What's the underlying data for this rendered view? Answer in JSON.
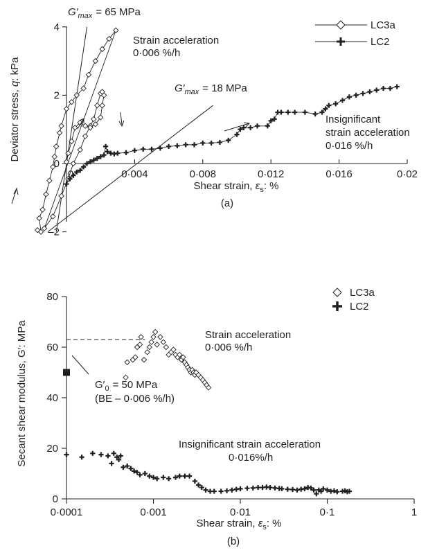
{
  "chart_data": [
    {
      "panel_label": "(a)",
      "type": "line",
      "xlabel_text": "Shear strain, ",
      "xlabel_symbol": "ε",
      "xlabel_sub": "s",
      "xlabel_unit": ": %",
      "ylabel_text": "Deviator stress, ",
      "ylabel_symbol": "q",
      "ylabel_unit": ": kPa",
      "xlim": [
        0,
        0.02
      ],
      "ylim": [
        -2.2,
        4
      ],
      "xticks": [
        0,
        0.004,
        0.008,
        0.012,
        0.016,
        0.02
      ],
      "xtick_labels": [
        "0",
        "0·004",
        "0·008",
        "0·012",
        "0·016",
        "0·02"
      ],
      "yticks": [
        -2,
        0,
        2,
        4
      ],
      "ytick_labels": [
        "–2",
        "0",
        "2",
        "4"
      ],
      "legend_position": "top-right",
      "series": [
        {
          "name": "LC3a",
          "marker": "diamond-open",
          "points": [
            [
              -0.0017,
              -1.95
            ],
            [
              -0.0015,
              -2.0
            ],
            [
              -0.0016,
              -1.6
            ],
            [
              -0.0014,
              -1.35
            ],
            [
              -0.0012,
              -0.9
            ],
            [
              -0.001,
              -0.5
            ],
            [
              -0.0008,
              -0.1
            ],
            [
              -0.0007,
              0.2
            ],
            [
              -0.0006,
              0.5
            ],
            [
              -0.0004,
              0.9
            ],
            [
              -0.0003,
              1.1
            ],
            [
              0.0,
              1.6
            ],
            [
              0.0003,
              1.8
            ],
            [
              0.0006,
              2.0
            ],
            [
              0.001,
              2.2
            ],
            [
              0.0013,
              2.6
            ],
            [
              0.0017,
              3.0
            ],
            [
              0.0021,
              3.35
            ],
            [
              0.0025,
              3.65
            ],
            [
              0.0029,
              3.9
            ],
            [
              -0.0013,
              -1.9
            ],
            [
              -0.0008,
              -1.55
            ],
            [
              -0.0003,
              -0.95
            ],
            [
              0.0001,
              -0.45
            ],
            [
              0.0004,
              0.0
            ],
            [
              0.0008,
              0.4
            ],
            [
              0.0011,
              0.8
            ],
            [
              0.0014,
              1.1
            ],
            [
              0.0016,
              1.3
            ],
            [
              0.0018,
              1.7
            ],
            [
              0.002,
              2.05
            ],
            [
              0.0021,
              2.1
            ],
            [
              0.0022,
              2.0
            ],
            [
              0.0021,
              1.7
            ],
            [
              0.002,
              1.35
            ],
            [
              0.0017,
              1.15
            ],
            [
              0.0014,
              1.05
            ],
            [
              0.0011,
              1.1
            ],
            [
              0.0008,
              1.2
            ],
            [
              0.0005,
              1.05
            ],
            [
              0.0003,
              0.65
            ],
            [
              0.0001,
              0.3
            ],
            [
              0.0,
              0.05
            ]
          ]
        },
        {
          "name": "LC2",
          "marker": "plus-bold",
          "points": [
            [
              0.0,
              -0.6
            ],
            [
              0.0002,
              -0.45
            ],
            [
              0.0004,
              -0.35
            ],
            [
              0.0006,
              -0.25
            ],
            [
              0.0008,
              -0.2
            ],
            [
              0.001,
              -0.1
            ],
            [
              0.0012,
              0.0
            ],
            [
              0.0014,
              0.05
            ],
            [
              0.0016,
              0.1
            ],
            [
              0.0018,
              0.15
            ],
            [
              0.002,
              0.2
            ],
            [
              0.0022,
              0.25
            ],
            [
              0.0023,
              0.5
            ],
            [
              0.0024,
              0.35
            ],
            [
              0.0026,
              0.3
            ],
            [
              0.0028,
              0.28
            ],
            [
              0.003,
              0.3
            ],
            [
              0.0035,
              0.32
            ],
            [
              0.004,
              0.38
            ],
            [
              0.0045,
              0.42
            ],
            [
              0.005,
              0.42
            ],
            [
              0.0055,
              0.45
            ],
            [
              0.006,
              0.5
            ],
            [
              0.0065,
              0.52
            ],
            [
              0.007,
              0.55
            ],
            [
              0.0075,
              0.55
            ],
            [
              0.008,
              0.6
            ],
            [
              0.0085,
              0.6
            ],
            [
              0.009,
              0.62
            ],
            [
              0.0095,
              0.68
            ],
            [
              0.01,
              0.85
            ],
            [
              0.0102,
              1.0
            ],
            [
              0.0104,
              1.05
            ],
            [
              0.0108,
              1.05
            ],
            [
              0.0112,
              1.1
            ],
            [
              0.0118,
              1.1
            ],
            [
              0.012,
              1.25
            ],
            [
              0.0122,
              1.3
            ],
            [
              0.0124,
              1.5
            ],
            [
              0.0126,
              1.5
            ],
            [
              0.013,
              1.5
            ],
            [
              0.0134,
              1.5
            ],
            [
              0.014,
              1.5
            ],
            [
              0.0146,
              1.45
            ],
            [
              0.015,
              1.5
            ],
            [
              0.0152,
              1.6
            ],
            [
              0.0154,
              1.7
            ],
            [
              0.0158,
              1.75
            ],
            [
              0.0162,
              1.85
            ],
            [
              0.0166,
              1.95
            ],
            [
              0.017,
              2.0
            ],
            [
              0.0174,
              2.05
            ],
            [
              0.0178,
              2.1
            ],
            [
              0.0182,
              2.15
            ],
            [
              0.0186,
              2.2
            ],
            [
              0.019,
              2.2
            ],
            [
              0.0194,
              2.25
            ]
          ]
        }
      ],
      "annotations": {
        "gmax_high_value": "= 65 MPa",
        "gmax_low_value": "= 18 MPa",
        "g_symbol": "G′",
        "g_sub": "max",
        "strain_accel_line1": "Strain acceleration",
        "strain_accel_line2": "0·006 %/h",
        "insig_line1": "Insignificant",
        "insig_line2": "strain acceleration",
        "insig_line3": "0·016 %/h"
      }
    },
    {
      "panel_label": "(b)",
      "type": "scatter",
      "xscale": "log",
      "xlabel_text": "Shear strain, ",
      "xlabel_symbol": "ε",
      "xlabel_sub": "s",
      "xlabel_unit": ": %",
      "ylabel": "Secant shear modulus, G′: MPa",
      "xlim": [
        0.0001,
        1
      ],
      "ylim": [
        0,
        80
      ],
      "xticks": [
        0.0001,
        0.001,
        0.01,
        0.1,
        1
      ],
      "xtick_labels": [
        "0·0001",
        "0·001",
        "0·01",
        "0·1",
        "1"
      ],
      "yticks": [
        0,
        20,
        40,
        60,
        80
      ],
      "ytick_labels": [
        "0",
        "20",
        "40",
        "60",
        "80"
      ],
      "legend_position": "top-right",
      "reference_line_y": 63,
      "series": [
        {
          "name": "LC3a",
          "marker": "diamond-open",
          "points": [
            [
              0.00048,
              48
            ],
            [
              0.0005,
              54
            ],
            [
              0.00058,
              55
            ],
            [
              0.00062,
              56
            ],
            [
              0.00065,
              60
            ],
            [
              0.0007,
              61
            ],
            [
              0.00072,
              64
            ],
            [
              0.00078,
              55
            ],
            [
              0.00085,
              58
            ],
            [
              0.0009,
              60
            ],
            [
              0.00095,
              62
            ],
            [
              0.001,
              64
            ],
            [
              0.00105,
              66
            ],
            [
              0.0011,
              61
            ],
            [
              0.0012,
              64
            ],
            [
              0.0013,
              62
            ],
            [
              0.0014,
              60
            ],
            [
              0.0015,
              57
            ],
            [
              0.0016,
              58
            ],
            [
              0.0017,
              59
            ],
            [
              0.0018,
              57
            ],
            [
              0.0019,
              56
            ],
            [
              0.002,
              57
            ],
            [
              0.0021,
              55
            ],
            [
              0.0022,
              56
            ],
            [
              0.0023,
              54
            ],
            [
              0.0024,
              53
            ],
            [
              0.0025,
              52
            ],
            [
              0.0026,
              51
            ],
            [
              0.0027,
              50
            ],
            [
              0.0028,
              51
            ],
            [
              0.0029,
              50
            ],
            [
              0.003,
              49
            ],
            [
              0.0031,
              50
            ],
            [
              0.0033,
              49
            ],
            [
              0.0035,
              48
            ],
            [
              0.0037,
              47
            ],
            [
              0.0039,
              46
            ],
            [
              0.0041,
              45
            ],
            [
              0.0043,
              44
            ]
          ]
        },
        {
          "name": "LC2",
          "marker": "plus-bold",
          "points": [
            [
              0.0001,
              17.5
            ],
            [
              0.00015,
              16.5
            ],
            [
              0.0002,
              18
            ],
            [
              0.00025,
              17.5
            ],
            [
              0.0003,
              17
            ],
            [
              0.00033,
              14
            ],
            [
              0.00035,
              18
            ],
            [
              0.00038,
              16.5
            ],
            [
              0.0004,
              15.5
            ],
            [
              0.00042,
              17
            ],
            [
              0.00045,
              12.5
            ],
            [
              0.0005,
              13
            ],
            [
              0.00055,
              12
            ],
            [
              0.0006,
              11
            ],
            [
              0.00065,
              10.5
            ],
            [
              0.0007,
              9.5
            ],
            [
              0.0008,
              10
            ],
            [
              0.0009,
              9
            ],
            [
              0.001,
              8.5
            ],
            [
              0.0011,
              8
            ],
            [
              0.0013,
              8.5
            ],
            [
              0.0015,
              8
            ],
            [
              0.0018,
              8.5
            ],
            [
              0.002,
              9
            ],
            [
              0.0023,
              9
            ],
            [
              0.0026,
              9
            ],
            [
              0.003,
              7
            ],
            [
              0.0033,
              5.5
            ],
            [
              0.0036,
              4.5
            ],
            [
              0.004,
              3.5
            ],
            [
              0.0045,
              3
            ],
            [
              0.005,
              3
            ],
            [
              0.006,
              3
            ],
            [
              0.007,
              3.2
            ],
            [
              0.008,
              3.5
            ],
            [
              0.009,
              3.8
            ],
            [
              0.01,
              4
            ],
            [
              0.012,
              4.2
            ],
            [
              0.014,
              4.3
            ],
            [
              0.016,
              4.5
            ],
            [
              0.018,
              4.5
            ],
            [
              0.02,
              4.7
            ],
            [
              0.022,
              4.5
            ],
            [
              0.025,
              4.3
            ],
            [
              0.028,
              4.1
            ],
            [
              0.03,
              4.0
            ],
            [
              0.035,
              3.8
            ],
            [
              0.04,
              3.7
            ],
            [
              0.045,
              3.5
            ],
            [
              0.05,
              3.8
            ],
            [
              0.055,
              4.0
            ],
            [
              0.06,
              4.5
            ],
            [
              0.065,
              4.3
            ],
            [
              0.07,
              3.5
            ],
            [
              0.075,
              2.0
            ],
            [
              0.08,
              3.5
            ],
            [
              0.085,
              3.0
            ],
            [
              0.09,
              4.0
            ],
            [
              0.1,
              3.5
            ],
            [
              0.11,
              3.0
            ],
            [
              0.12,
              3.2
            ],
            [
              0.13,
              2.8
            ],
            [
              0.15,
              3.0
            ],
            [
              0.16,
              3.2
            ],
            [
              0.17,
              2.8
            ],
            [
              0.18,
              3.0
            ]
          ]
        },
        {
          "name": "G′0 (BE)",
          "marker": "square-filled",
          "points": [
            [
              0.0001,
              50
            ]
          ]
        }
      ],
      "annotations": {
        "strain_accel_line1": "Strain acceleration",
        "strain_accel_line2": "0·006 %/h",
        "insig_line1": "Insignificant strain acceleration",
        "insig_line2": "0·016%/h",
        "g0_line1": "G′",
        "g0_sub": "0",
        "g0_value": "= 50 MPa",
        "g0_line2": "(BE – 0·006 %/h)"
      }
    }
  ]
}
